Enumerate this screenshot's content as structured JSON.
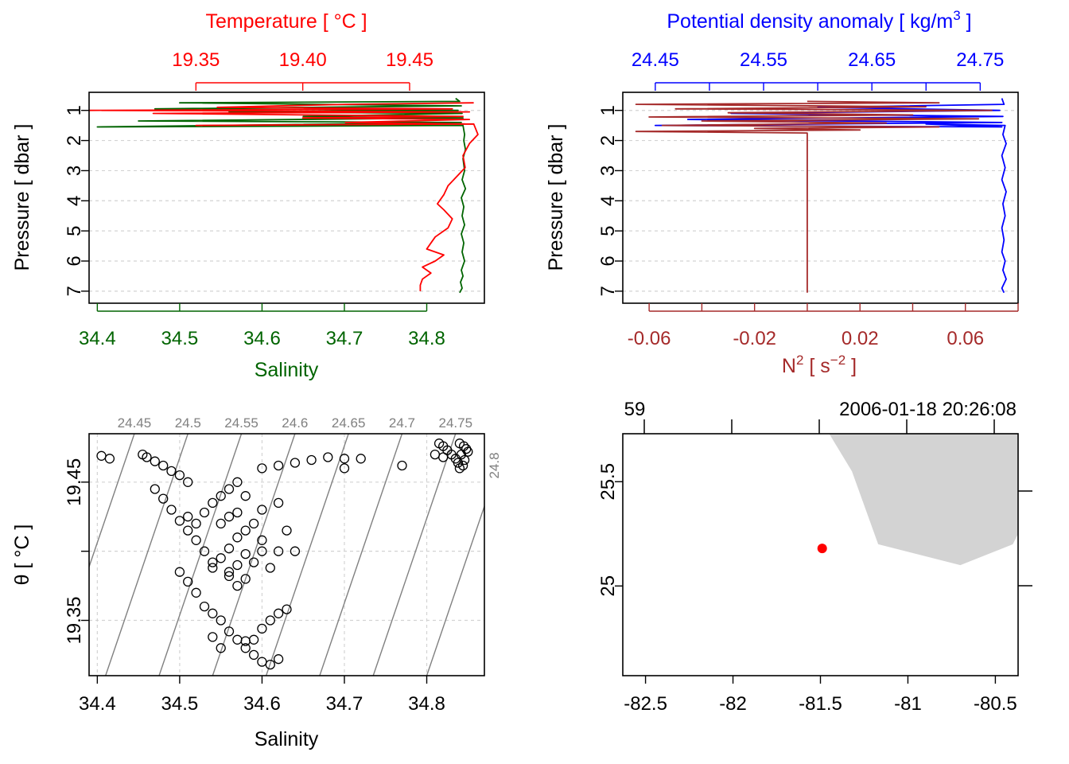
{
  "colors": {
    "temperature": "#ff0000",
    "salinity": "#006400",
    "density": "#0000ff",
    "n2": "#a52a2a",
    "isopycnal": "#808080",
    "grid": "#d3d3d3",
    "land": "#d3d3d3",
    "station": "#ff0000"
  },
  "chart_data": [
    {
      "id": "ts-profile",
      "type": "line",
      "ylabel": "Pressure [ dbar ]",
      "ylim": [
        7.4,
        0.4
      ],
      "ytick_labels": [
        "1",
        "2",
        "3",
        "4",
        "5",
        "6",
        "7"
      ],
      "bottom_axis": {
        "label": "Salinity",
        "lim": [
          34.39,
          34.87
        ],
        "tick_labels": [
          "34.4",
          "34.5",
          "34.6",
          "34.7",
          "34.8"
        ]
      },
      "top_axis": {
        "label": "Temperature [ °C ]",
        "lim": [
          19.3,
          19.485
        ],
        "tick_labels": [
          "19.35",
          "19.40",
          "19.45"
        ]
      },
      "series": [
        {
          "name": "Salinity",
          "axis": "bottom",
          "x": [
            34.835,
            34.84,
            34.5,
            34.842,
            34.47,
            34.838,
            34.56,
            34.843,
            34.65,
            34.844,
            34.45,
            34.842,
            34.4,
            34.844,
            34.846,
            34.845,
            34.847,
            34.844,
            34.846,
            34.843,
            34.847,
            34.842,
            34.845,
            34.843,
            34.846,
            34.842,
            34.845,
            34.843,
            34.846,
            34.842,
            34.844,
            34.841,
            34.843,
            34.84
          ],
          "y": [
            0.6,
            0.7,
            0.75,
            0.85,
            0.95,
            1.0,
            1.05,
            1.1,
            1.2,
            1.25,
            1.35,
            1.4,
            1.55,
            1.5,
            1.8,
            2.0,
            2.3,
            2.6,
            3.0,
            3.3,
            3.6,
            3.9,
            4.2,
            4.5,
            4.8,
            5.1,
            5.4,
            5.7,
            6.0,
            6.3,
            6.5,
            6.7,
            6.9,
            7.05
          ]
        },
        {
          "name": "Temperature",
          "axis": "top",
          "x": [
            19.48,
            19.42,
            19.36,
            19.47,
            19.3,
            19.478,
            19.33,
            19.475,
            19.4,
            19.478,
            19.42,
            19.476,
            19.35,
            19.48,
            19.482,
            19.478,
            19.475,
            19.476,
            19.472,
            19.468,
            19.466,
            19.463,
            19.466,
            19.47,
            19.468,
            19.462,
            19.46,
            19.458,
            19.466,
            19.462,
            19.456,
            19.46,
            19.456,
            19.455,
            19.455
          ],
          "y": [
            0.75,
            0.8,
            0.9,
            0.95,
            1.0,
            1.05,
            1.1,
            1.2,
            1.25,
            1.3,
            1.4,
            1.45,
            1.5,
            1.45,
            1.8,
            2.1,
            2.5,
            2.9,
            3.2,
            3.5,
            3.8,
            4.1,
            4.3,
            4.6,
            4.9,
            5.2,
            5.4,
            5.6,
            5.8,
            6.0,
            6.2,
            6.4,
            6.6,
            6.8,
            7.0
          ]
        }
      ]
    },
    {
      "id": "density-n2-profile",
      "type": "line",
      "ylabel": "Pressure [ dbar ]",
      "ylim": [
        7.4,
        0.4
      ],
      "ytick_labels": [
        "1",
        "2",
        "3",
        "4",
        "5",
        "6",
        "7"
      ],
      "bottom_axis": {
        "label": "N",
        "label_sup": "2",
        "label_tail": " [ s",
        "label_tail_sup": "−2",
        "label_end": " ]",
        "lim": [
          -0.07,
          0.08
        ],
        "tick_labels": [
          "-0.06",
          "-0.02",
          "0.02",
          "0.06"
        ],
        "tick_values": [
          -0.06,
          -0.04,
          -0.02,
          0.0,
          0.02,
          0.04,
          0.06,
          0.08
        ]
      },
      "top_axis": {
        "label": "Potential density anomaly [ kg/m",
        "label_sup": "3",
        "label_end": " ]",
        "lim": [
          24.42,
          24.785
        ],
        "tick_labels": [
          "24.45",
          "24.55",
          "24.65",
          "24.75"
        ],
        "tick_values": [
          24.45,
          24.5,
          24.55,
          24.6,
          24.65,
          24.7,
          24.75
        ]
      },
      "series": [
        {
          "name": "Potential density anomaly",
          "axis": "top",
          "x": [
            24.77,
            24.772,
            24.6,
            24.768,
            24.52,
            24.771,
            24.48,
            24.77,
            24.45,
            24.77,
            24.7,
            24.773,
            24.771,
            24.774,
            24.77,
            24.773,
            24.77,
            24.774,
            24.771,
            24.773,
            24.77,
            24.772,
            24.77,
            24.773,
            24.771,
            24.774,
            24.77,
            24.772
          ],
          "y": [
            0.6,
            0.8,
            0.9,
            1.0,
            1.1,
            1.2,
            1.3,
            1.4,
            1.5,
            1.55,
            1.45,
            1.5,
            1.8,
            2.1,
            2.5,
            2.9,
            3.3,
            3.7,
            4.1,
            4.5,
            4.9,
            5.3,
            5.7,
            6.0,
            6.3,
            6.6,
            6.9,
            7.05
          ]
        },
        {
          "name": "N2",
          "axis": "bottom",
          "x": [
            0.0,
            0.05,
            -0.065,
            0.045,
            -0.05,
            0.07,
            -0.03,
            0.04,
            -0.06,
            0.065,
            -0.04,
            0.03,
            -0.055,
            0.05,
            -0.02,
            0.02,
            -0.065,
            0.0,
            0.0,
            0.0
          ],
          "y": [
            0.7,
            0.75,
            0.8,
            0.88,
            0.95,
            1.0,
            1.08,
            1.15,
            1.22,
            1.28,
            1.35,
            1.42,
            1.5,
            1.55,
            1.6,
            1.65,
            1.7,
            1.75,
            4.0,
            7.05
          ]
        }
      ]
    },
    {
      "id": "ts-diagram",
      "type": "scatter",
      "xlabel": "Salinity",
      "ylabel": "θ [ °C ]",
      "xlim": [
        34.39,
        34.87
      ],
      "ylim": [
        19.31,
        19.485
      ],
      "xtick_labels": [
        "34.4",
        "34.5",
        "34.6",
        "34.7",
        "34.8"
      ],
      "ytick_labels": [
        "19.35",
        "19.45"
      ],
      "isopycnal_labels": [
        "24.45",
        "24.5",
        "24.55",
        "24.6",
        "24.65",
        "24.7",
        "24.75",
        "24.8"
      ],
      "points": [
        [
          34.405,
          19.469
        ],
        [
          34.415,
          19.467
        ],
        [
          34.455,
          19.47
        ],
        [
          34.46,
          19.468
        ],
        [
          34.47,
          19.465
        ],
        [
          34.48,
          19.462
        ],
        [
          34.49,
          19.458
        ],
        [
          34.5,
          19.455
        ],
        [
          34.51,
          19.45
        ],
        [
          34.47,
          19.445
        ],
        [
          34.48,
          19.438
        ],
        [
          34.49,
          19.43
        ],
        [
          34.5,
          19.422
        ],
        [
          34.51,
          19.415
        ],
        [
          34.52,
          19.408
        ],
        [
          34.53,
          19.4
        ],
        [
          34.54,
          19.392
        ],
        [
          34.5,
          19.385
        ],
        [
          34.51,
          19.378
        ],
        [
          34.52,
          19.37
        ],
        [
          34.55,
          19.395
        ],
        [
          34.56,
          19.402
        ],
        [
          34.57,
          19.41
        ],
        [
          34.58,
          19.415
        ],
        [
          34.59,
          19.42
        ],
        [
          34.6,
          19.408
        ],
        [
          34.62,
          19.4
        ],
        [
          34.61,
          19.388
        ],
        [
          34.58,
          19.38
        ],
        [
          34.57,
          19.375
        ],
        [
          34.56,
          19.382
        ],
        [
          34.54,
          19.388
        ],
        [
          34.53,
          19.36
        ],
        [
          34.54,
          19.355
        ],
        [
          34.55,
          19.35
        ],
        [
          34.56,
          19.342
        ],
        [
          34.57,
          19.336
        ],
        [
          34.58,
          19.33
        ],
        [
          34.59,
          19.336
        ],
        [
          34.6,
          19.344
        ],
        [
          34.61,
          19.35
        ],
        [
          34.62,
          19.355
        ],
        [
          34.63,
          19.358
        ],
        [
          34.62,
          19.322
        ],
        [
          34.61,
          19.318
        ],
        [
          34.6,
          19.32
        ],
        [
          34.59,
          19.325
        ],
        [
          34.58,
          19.335
        ],
        [
          34.55,
          19.33
        ],
        [
          34.54,
          19.338
        ],
        [
          34.63,
          19.415
        ],
        [
          34.64,
          19.4
        ],
        [
          34.6,
          19.43
        ],
        [
          34.62,
          19.435
        ],
        [
          34.58,
          19.44
        ],
        [
          34.57,
          19.45
        ],
        [
          34.56,
          19.445
        ],
        [
          34.55,
          19.44
        ],
        [
          34.54,
          19.435
        ],
        [
          34.53,
          19.428
        ],
        [
          34.52,
          19.42
        ],
        [
          34.51,
          19.425
        ],
        [
          34.55,
          19.42
        ],
        [
          34.56,
          19.425
        ],
        [
          34.57,
          19.428
        ],
        [
          34.58,
          19.398
        ],
        [
          34.57,
          19.39
        ],
        [
          34.56,
          19.385
        ],
        [
          34.59,
          19.392
        ],
        [
          34.6,
          19.4
        ],
        [
          34.6,
          19.46
        ],
        [
          34.62,
          19.462
        ],
        [
          34.64,
          19.464
        ],
        [
          34.66,
          19.466
        ],
        [
          34.68,
          19.468
        ],
        [
          34.7,
          19.467
        ],
        [
          34.72,
          19.467
        ],
        [
          34.7,
          19.46
        ],
        [
          34.77,
          19.462
        ],
        [
          34.81,
          19.47
        ],
        [
          34.82,
          19.468
        ],
        [
          34.84,
          19.478
        ],
        [
          34.845,
          19.476
        ],
        [
          34.848,
          19.474
        ],
        [
          34.85,
          19.472
        ],
        [
          34.842,
          19.47
        ],
        [
          34.846,
          19.466
        ],
        [
          34.844,
          19.462
        ],
        [
          34.84,
          19.46
        ],
        [
          34.838,
          19.464
        ],
        [
          34.835,
          19.467
        ],
        [
          34.83,
          19.47
        ],
        [
          34.825,
          19.473
        ],
        [
          34.82,
          19.476
        ],
        [
          34.815,
          19.478
        ]
      ]
    },
    {
      "id": "station-map",
      "type": "scatter",
      "xlim": [
        -82.63,
        -80.37
      ],
      "ylim": [
        24.57,
        25.73
      ],
      "xtick_labels": [
        "-82.5",
        "-82",
        "-81.5",
        "-81",
        "-80.5"
      ],
      "ytick_labels": [
        "25",
        "25.5"
      ],
      "top_labels": {
        "station": "59",
        "time": "2006-01-18 20:26:08"
      },
      "station": {
        "lon": -81.49,
        "lat": 25.18
      },
      "land": [
        [
          -81.45,
          25.73
        ],
        [
          -80.37,
          25.73
        ],
        [
          -80.37,
          25.25
        ],
        [
          -80.4,
          25.2
        ],
        [
          -80.7,
          25.1
        ],
        [
          -81.17,
          25.2
        ],
        [
          -81.32,
          25.55
        ],
        [
          -81.45,
          25.73
        ]
      ]
    }
  ]
}
